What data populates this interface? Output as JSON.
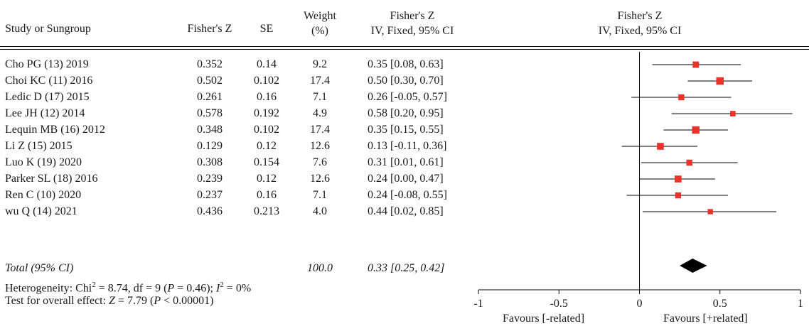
{
  "headers": {
    "study": "Study or Sungroup",
    "fz": "Fisher's Z",
    "se": "SE",
    "weight_l1": "Weight",
    "weight_l2": "(%)",
    "ci_l1": "Fisher's Z",
    "ci_l2": "IV, Fixed, 95% CI",
    "plot_l1": "Fisher's Z",
    "plot_l2": "IV, Fixed, 95% CI"
  },
  "rows": [
    {
      "study": "Cho PG (13) 2019",
      "fz": "0.352",
      "se": "0.14",
      "weight": "9.2",
      "ci": "0.35 [0.08, 0.63]"
    },
    {
      "study": "Choi KC (11) 2016",
      "fz": "0.502",
      "se": "0.102",
      "weight": "17.4",
      "ci": "0.50 [0.30, 0.70]"
    },
    {
      "study": "Ledic D (17) 2015",
      "fz": "0.261",
      "se": "0.16",
      "weight": "7.1",
      "ci": "0.26 [-0.05, 0.57]"
    },
    {
      "study": "Lee JH (12) 2014",
      "fz": "0.578",
      "se": "0.192",
      "weight": "4.9",
      "ci": "0.58 [0.20, 0.95]"
    },
    {
      "study": "Lequin MB (16) 2012",
      "fz": "0.348",
      "se": "0.102",
      "weight": "17.4",
      "ci": "0.35 [0.15, 0.55]"
    },
    {
      "study": "Li Z (15) 2015",
      "fz": "0.129",
      "se": "0.12",
      "weight": "12.6",
      "ci": "0.13 [-0.11, 0.36]"
    },
    {
      "study": "Luo K (19) 2020",
      "fz": "0.308",
      "se": "0.154",
      "weight": "7.6",
      "ci": "0.31 [0.01, 0.61]"
    },
    {
      "study": "Parker SL (18) 2016",
      "fz": "0.239",
      "se": "0.12",
      "weight": "12.6",
      "ci": "0.24 [0.00, 0.47]"
    },
    {
      "study": "Ren C (10) 2020",
      "fz": "0.237",
      "se": "0.16",
      "weight": "7.1",
      "ci": "0.24 [-0.08, 0.55]"
    },
    {
      "study": "wu Q (14) 2021",
      "fz": "0.436",
      "se": "0.213",
      "weight": "4.0",
      "ci": "0.44 [0.02, 0.85]"
    }
  ],
  "total": {
    "label": "Total (95% CI)",
    "weight": "100.0",
    "ci": "0.33 [0.25, 0.42]"
  },
  "heterogeneity": {
    "prefix": "Heterogeneity: Chi",
    "chi_sup": "2",
    "chi_val": " = 8.74, df = 9 (",
    "p_label": "P",
    "p_val": " = 0.46); ",
    "i_label": "I",
    "i_sup": "2",
    "i_val": " = 0%"
  },
  "overall": {
    "prefix": "Test for overall effect: ",
    "z_label": "Z",
    "z_val": " = 7.79 (",
    "p_label": "P",
    "p_val": " < 0.00001)"
  },
  "favours": {
    "left": "Favours [-related]",
    "right": "Favours [+related]"
  },
  "chart_data": {
    "type": "forest",
    "axis": {
      "min": -1,
      "max": 1,
      "ticks": [
        -1,
        -0.5,
        0,
        0.5,
        1
      ],
      "tick_labels": [
        "-1",
        "-0.5",
        "0",
        "0.5",
        "1"
      ]
    },
    "studies": [
      {
        "name": "Cho PG (13) 2019",
        "estimate": 0.35,
        "lower": 0.08,
        "upper": 0.63,
        "weight": 9.2
      },
      {
        "name": "Choi KC (11) 2016",
        "estimate": 0.5,
        "lower": 0.3,
        "upper": 0.7,
        "weight": 17.4
      },
      {
        "name": "Ledic D (17) 2015",
        "estimate": 0.26,
        "lower": -0.05,
        "upper": 0.57,
        "weight": 7.1
      },
      {
        "name": "Lee JH (12) 2014",
        "estimate": 0.58,
        "lower": 0.2,
        "upper": 0.95,
        "weight": 4.9
      },
      {
        "name": "Lequin MB (16) 2012",
        "estimate": 0.35,
        "lower": 0.15,
        "upper": 0.55,
        "weight": 17.4
      },
      {
        "name": "Li Z (15) 2015",
        "estimate": 0.13,
        "lower": -0.11,
        "upper": 0.36,
        "weight": 12.6
      },
      {
        "name": "Luo K (19) 2020",
        "estimate": 0.31,
        "lower": 0.01,
        "upper": 0.61,
        "weight": 7.6
      },
      {
        "name": "Parker SL (18) 2016",
        "estimate": 0.24,
        "lower": 0.0,
        "upper": 0.47,
        "weight": 12.6
      },
      {
        "name": "Ren C (10) 2020",
        "estimate": 0.24,
        "lower": -0.08,
        "upper": 0.55,
        "weight": 7.1
      },
      {
        "name": "wu Q (14) 2021",
        "estimate": 0.44,
        "lower": 0.02,
        "upper": 0.85,
        "weight": 4.0
      }
    ],
    "pooled": {
      "estimate": 0.33,
      "lower": 0.25,
      "upper": 0.42
    },
    "colors": {
      "study_marker": "#e8322a",
      "pooled_marker": "#000000",
      "lines": "#000000"
    }
  }
}
